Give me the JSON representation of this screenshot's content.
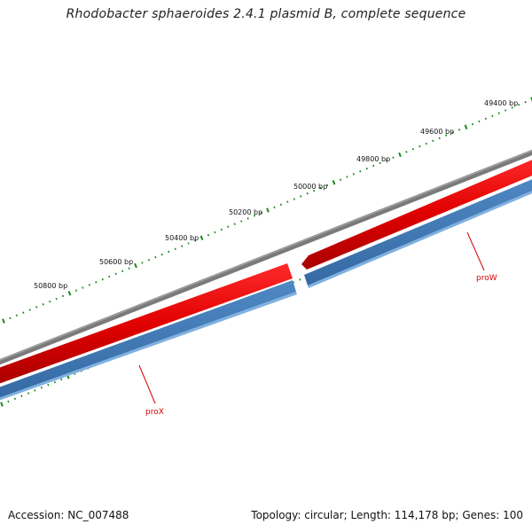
{
  "map": {
    "title": "Rhodobacter sphaeroides 2.4.1 plasmid B, complete sequence",
    "accession": "Accession: NC_007488",
    "summary": "Topology: circular; Length: 114,178 bp; Genes: 100",
    "ruler": [
      {
        "position": 49400,
        "label": "49400 bp"
      },
      {
        "position": 49600,
        "label": "49600 bp"
      },
      {
        "position": 49800,
        "label": "49800 bp"
      },
      {
        "position": 50000,
        "label": "50000 bp"
      },
      {
        "position": 50200,
        "label": "50200 bp"
      },
      {
        "position": 50400,
        "label": "50400 bp"
      },
      {
        "position": 50600,
        "label": "50600 bp"
      },
      {
        "position": 50800,
        "label": "50800 bp"
      }
    ],
    "genes": [
      {
        "name": "proW",
        "color": "#e00000"
      },
      {
        "name": "proX",
        "color": "#e00000"
      }
    ],
    "colors": {
      "backbone": "#7a7a7a",
      "forward_track": "#e00000",
      "reverse_track": "#3f78b4",
      "ticks": "#1a8a1a",
      "gene_label": "#d40000"
    }
  }
}
